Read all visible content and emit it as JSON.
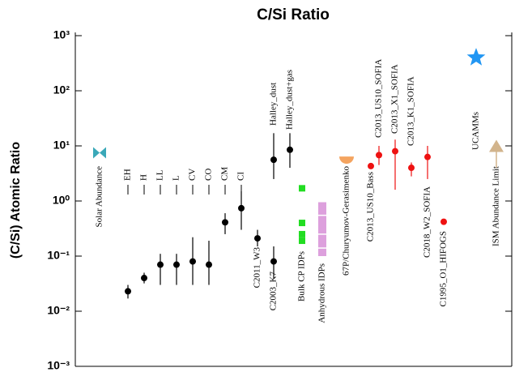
{
  "chart_data": {
    "type": "scatter",
    "title": "C/Si Ratio",
    "y_label": "(C/Si) Atomic Ratio",
    "log_y": true,
    "ylim": [
      0.001,
      1000
    ],
    "yticks": [
      {
        "value": 0.001,
        "label": "10⁻³"
      },
      {
        "value": 0.01,
        "label": "10⁻²"
      },
      {
        "value": 0.1,
        "label": "10⁻¹"
      },
      {
        "value": 1,
        "label": "10⁰"
      },
      {
        "value": 10,
        "label": "10¹"
      },
      {
        "value": 100,
        "label": "10²"
      },
      {
        "value": 1000,
        "label": "10³"
      }
    ],
    "series": [
      {
        "name": "Solar Abundance",
        "color": "#3aa8b8",
        "marker": "bowtie",
        "values": [
          7.5
        ]
      },
      {
        "name": "EH",
        "color": "#000000",
        "marker": "circle",
        "values": [
          0.023
        ],
        "low": [
          0.017
        ],
        "high": [
          0.03
        ]
      },
      {
        "name": "H",
        "color": "#000000",
        "marker": "circle",
        "values": [
          0.04
        ],
        "low": [
          0.032
        ],
        "high": [
          0.05
        ]
      },
      {
        "name": "LL",
        "color": "#000000",
        "marker": "circle",
        "values": [
          0.07
        ],
        "low": [
          0.03
        ],
        "high": [
          0.11
        ]
      },
      {
        "name": "L",
        "color": "#000000",
        "marker": "circle",
        "values": [
          0.07
        ],
        "low": [
          0.03
        ],
        "high": [
          0.11
        ]
      },
      {
        "name": "CV",
        "color": "#000000",
        "marker": "circle",
        "values": [
          0.08
        ],
        "low": [
          0.03
        ],
        "high": [
          0.22
        ]
      },
      {
        "name": "CO",
        "color": "#000000",
        "marker": "circle",
        "values": [
          0.07
        ],
        "low": [
          0.03
        ],
        "high": [
          0.19
        ]
      },
      {
        "name": "CM",
        "color": "#000000",
        "marker": "circle",
        "values": [
          0.41
        ],
        "low": [
          0.25
        ],
        "high": [
          0.6
        ]
      },
      {
        "name": "CI",
        "color": "#000000",
        "marker": "circle",
        "values": [
          0.74
        ],
        "low": [
          0.3
        ],
        "high": [
          1.5
        ]
      },
      {
        "name": "C2011_W3",
        "color": "#000000",
        "marker": "circle",
        "values": [
          0.21
        ],
        "low": [
          0.15
        ],
        "high": [
          0.3
        ]
      },
      {
        "name": "C2003_K7",
        "color": "#000000",
        "marker": "circle",
        "values": [
          0.08
        ],
        "low": [
          0.04
        ],
        "high": [
          0.15
        ]
      },
      {
        "name": "Halley_dust",
        "color": "#000000",
        "marker": "circle",
        "values": [
          5.6
        ],
        "low": [
          2.5
        ],
        "high": [
          17
        ]
      },
      {
        "name": "Halley_dust+gas",
        "color": "#000000",
        "marker": "circle",
        "values": [
          8.5
        ],
        "low": [
          4
        ],
        "high": [
          17
        ]
      },
      {
        "name": "Bulk CP IDPs",
        "color": "#22dd22",
        "marker": "square",
        "values": [
          1.7,
          0.4,
          0.25,
          0.19
        ]
      },
      {
        "name": "Anhydrous IDPs",
        "color": "#dda0dd",
        "marker": "range",
        "values": [
          0.55,
          0.25,
          0.14
        ],
        "low": [
          0.1
        ],
        "high": [
          0.95
        ]
      },
      {
        "name": "67P/Churyumov-Gerasimenko",
        "color": "#f4a460",
        "marker": "halfcircle",
        "values": [
          6
        ]
      },
      {
        "name": "C2013_US10_Bass",
        "color": "#ee1111",
        "marker": "circle",
        "values": [
          4.3
        ]
      },
      {
        "name": "C2013_US10_SOFIA",
        "color": "#ee1111",
        "marker": "circle",
        "values": [
          6.8
        ],
        "low": [
          4.5
        ],
        "high": [
          10
        ]
      },
      {
        "name": "C2013_X1_SOFIA",
        "color": "#ee1111",
        "marker": "circle",
        "values": [
          8
        ],
        "low": [
          1.6
        ],
        "high": [
          13
        ]
      },
      {
        "name": "C2013_K1_SOFIA",
        "color": "#ee1111",
        "marker": "circle",
        "values": [
          4
        ],
        "low": [
          2.8
        ],
        "high": [
          5
        ]
      },
      {
        "name": "C2018_W2_SOFIA",
        "color": "#ee1111",
        "marker": "circle",
        "values": [
          6.3
        ],
        "low": [
          2.5
        ],
        "high": [
          10
        ]
      },
      {
        "name": "C1995_O1_HIFOGS",
        "color": "#ee1111",
        "marker": "circle",
        "values": [
          0.42
        ]
      },
      {
        "name": "UCAMMs",
        "color": "#2196f3",
        "marker": "star",
        "values": [
          400
        ]
      },
      {
        "name": "ISM Abundance Limit",
        "color": "#d2b48c",
        "marker": "triangle",
        "values": [
          9.5
        ],
        "low": [
          4
        ]
      }
    ]
  }
}
